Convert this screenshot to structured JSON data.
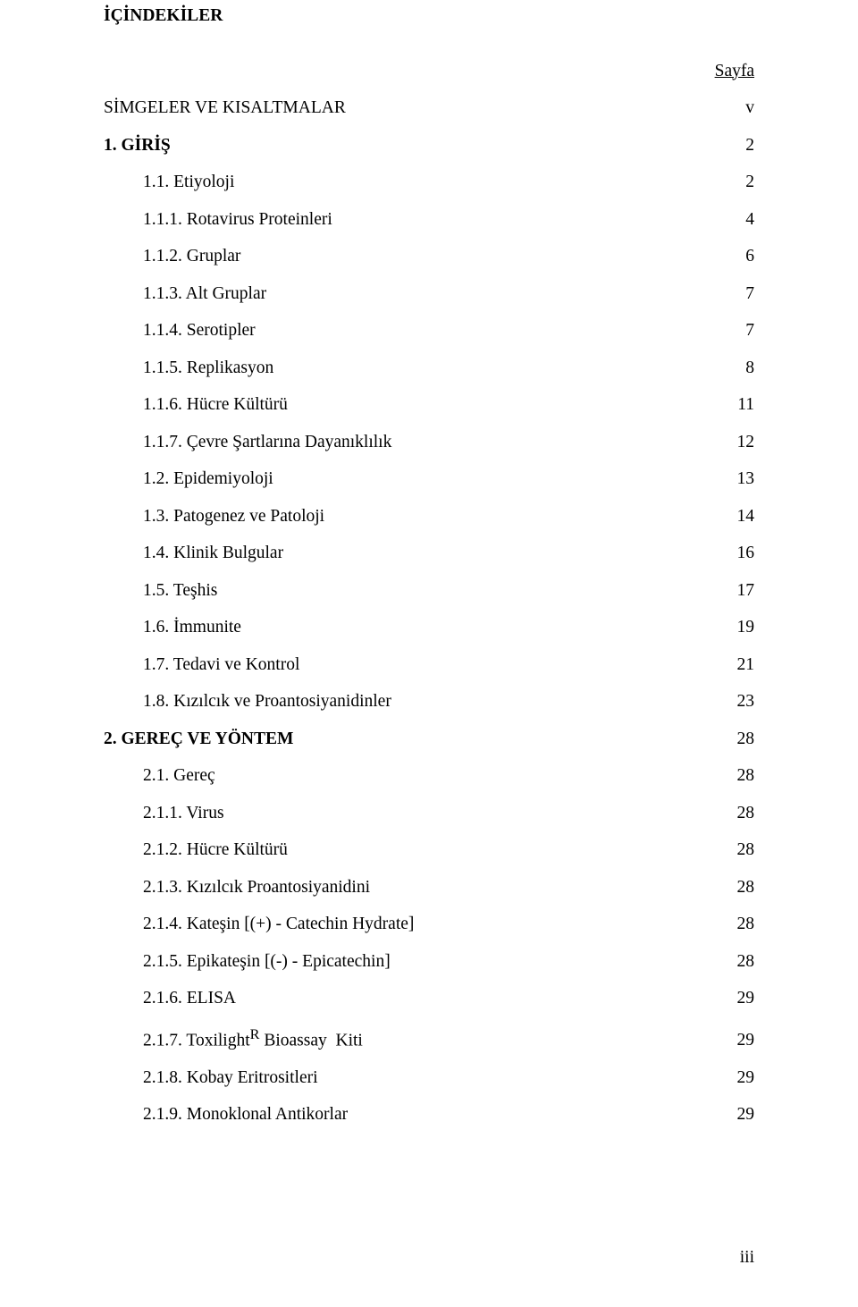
{
  "title": "İÇİNDEKİLER",
  "page_header": "Sayfa",
  "footer": "iii",
  "entries": [
    {
      "label": "SİMGELER VE KISALTMALAR",
      "page": "v",
      "indent": 0,
      "bold": false
    },
    {
      "label": "1. GİRİŞ",
      "page": "2",
      "indent": 0,
      "bold": true
    },
    {
      "label": "1.1. Etiyoloji",
      "page": "2",
      "indent": 1,
      "bold": false
    },
    {
      "label": "1.1.1. Rotavirus Proteinleri",
      "page": "4",
      "indent": 1,
      "bold": false
    },
    {
      "label": "1.1.2. Gruplar",
      "page": "6",
      "indent": 1,
      "bold": false
    },
    {
      "label": "1.1.3. Alt Gruplar",
      "page": "7",
      "indent": 1,
      "bold": false
    },
    {
      "label": "1.1.4. Serotipler",
      "page": "7",
      "indent": 1,
      "bold": false
    },
    {
      "label": "1.1.5. Replikasyon",
      "page": "8",
      "indent": 1,
      "bold": false
    },
    {
      "label": "1.1.6. Hücre Kültürü",
      "page": "11",
      "indent": 1,
      "bold": false
    },
    {
      "label": "1.1.7. Çevre Şartlarına Dayanıklılık",
      "page": "12",
      "indent": 1,
      "bold": false
    },
    {
      "label": "1.2. Epidemiyoloji",
      "page": "13",
      "indent": 1,
      "bold": false
    },
    {
      "label": "1.3. Patogenez ve Patoloji",
      "page": "14",
      "indent": 1,
      "bold": false
    },
    {
      "label": "1.4. Klinik Bulgular",
      "page": "16",
      "indent": 1,
      "bold": false
    },
    {
      "label": "1.5. Teşhis",
      "page": "17",
      "indent": 1,
      "bold": false
    },
    {
      "label": "1.6. İmmunite",
      "page": "19",
      "indent": 1,
      "bold": false
    },
    {
      "label": "1.7. Tedavi ve Kontrol",
      "page": "21",
      "indent": 1,
      "bold": false
    },
    {
      "label": "1.8. Kızılcık ve Proantosiyanidinler",
      "page": "23",
      "indent": 1,
      "bold": false
    },
    {
      "label": "2. GEREÇ VE YÖNTEM",
      "page": "28",
      "indent": 0,
      "bold": true
    },
    {
      "label": "2.1. Gereç",
      "page": "28",
      "indent": 1,
      "bold": false
    },
    {
      "label": "2.1.1. Virus",
      "page": "28",
      "indent": 1,
      "bold": false
    },
    {
      "label": "2.1.2. Hücre Kültürü",
      "page": "28",
      "indent": 1,
      "bold": false
    },
    {
      "label": "2.1.3. Kızılcık Proantosiyanidini",
      "page": "28",
      "indent": 1,
      "bold": false
    },
    {
      "label": "2.1.4. Kateşin [(+) - Catechin Hydrate]",
      "page": "28",
      "indent": 1,
      "bold": false
    },
    {
      "label": "2.1.5. Epikateşin [(-) - Epicatechin]",
      "page": "28",
      "indent": 1,
      "bold": false
    },
    {
      "label": "2.1.6. ELISA",
      "page": "29",
      "indent": 1,
      "bold": false
    },
    {
      "label_html": "2.1.7. Toxilight<sup>R</sup> Bioassay  Kiti",
      "page": "29",
      "indent": 1,
      "bold": false
    },
    {
      "label": "2.1.8. Kobay Eritrositleri",
      "page": "29",
      "indent": 1,
      "bold": false
    },
    {
      "label": "2.1.9. Monoklonal Antikorlar",
      "page": "29",
      "indent": 1,
      "bold": false
    }
  ]
}
